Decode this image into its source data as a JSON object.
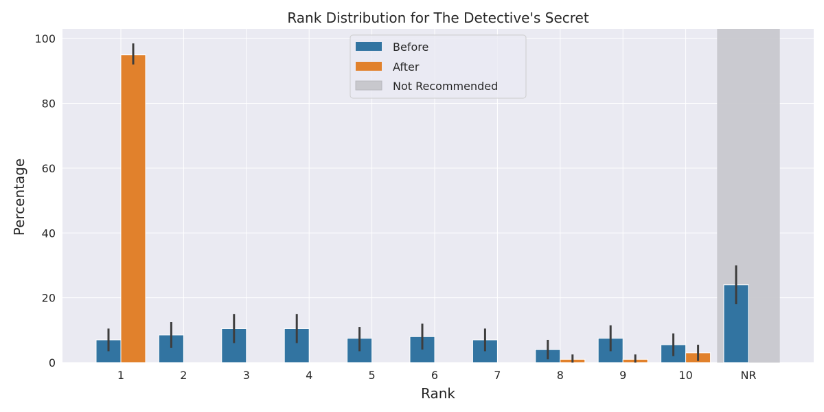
{
  "chart_data": {
    "type": "bar",
    "title": "Rank Distribution for The Detective's Secret",
    "xlabel": "Rank",
    "ylabel": "Percentage",
    "categories": [
      "1",
      "2",
      "3",
      "4",
      "5",
      "6",
      "7",
      "8",
      "9",
      "10",
      "NR"
    ],
    "ylim": [
      0,
      103
    ],
    "yticks": [
      0,
      20,
      40,
      60,
      80,
      100
    ],
    "grid": true,
    "legend_position": "top-center",
    "shaded_region": {
      "label": "Not Recommended",
      "category": "NR",
      "color": "#c8c8cd"
    },
    "series": [
      {
        "name": "Before",
        "color": "#3274a1",
        "values": [
          7.0,
          8.5,
          10.5,
          10.5,
          7.5,
          8.0,
          7.0,
          4.0,
          7.5,
          5.5,
          24.0
        ],
        "error_low": [
          3.5,
          4.5,
          6.0,
          6.0,
          3.5,
          4.0,
          3.5,
          1.0,
          3.5,
          2.0,
          18.0
        ],
        "error_high": [
          10.5,
          12.5,
          15.0,
          15.0,
          11.0,
          12.0,
          10.5,
          7.0,
          11.5,
          9.0,
          30.0
        ]
      },
      {
        "name": "After",
        "color": "#e1812c",
        "values": [
          95.0,
          0,
          0,
          0,
          0,
          0,
          0,
          1.0,
          1.0,
          3.0,
          0
        ],
        "error_low": [
          92.0,
          0,
          0,
          0,
          0,
          0,
          0,
          0,
          0,
          0.5,
          0
        ],
        "error_high": [
          98.5,
          0,
          0,
          0,
          0,
          0,
          0,
          2.5,
          2.5,
          5.5,
          0
        ]
      }
    ]
  }
}
